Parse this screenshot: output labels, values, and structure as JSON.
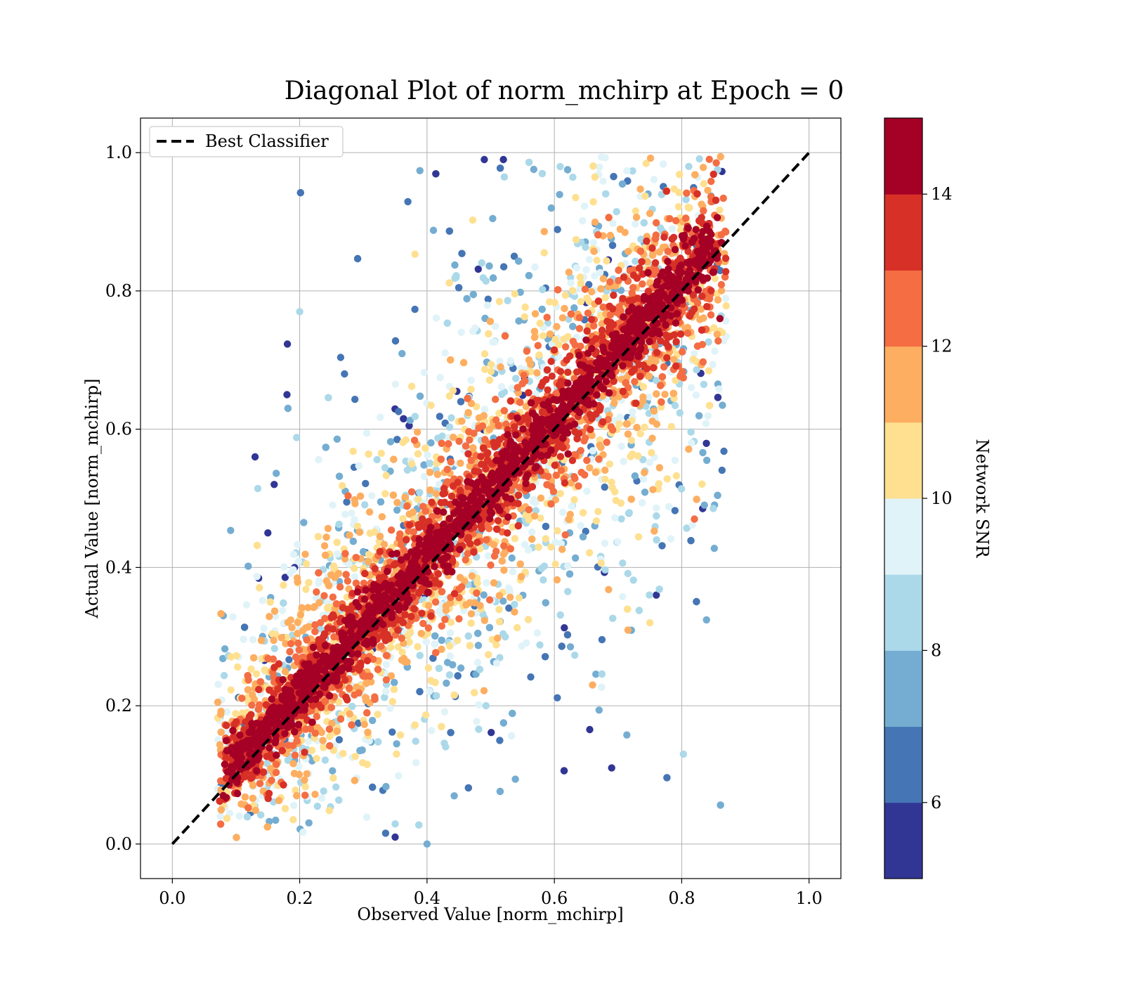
{
  "chart_data": {
    "type": "scatter",
    "title": "Diagonal Plot of norm_mchirp at Epoch = 0",
    "xlabel": "Observed Value [norm_mchirp]",
    "ylabel": "Actual Value [norm_mchirp]",
    "xlim": [
      -0.05,
      1.05
    ],
    "ylim": [
      -0.05,
      1.05
    ],
    "xticks": [
      0.0,
      0.2,
      0.4,
      0.6,
      0.8,
      1.0
    ],
    "yticks": [
      0.0,
      0.2,
      0.4,
      0.6,
      0.8,
      1.0
    ],
    "xtick_labels": [
      "0.0",
      "0.2",
      "0.4",
      "0.6",
      "0.8",
      "1.0"
    ],
    "ytick_labels": [
      "0.0",
      "0.2",
      "0.4",
      "0.6",
      "0.8",
      "1.0"
    ],
    "grid": true,
    "legend": {
      "placement": "top-left",
      "entries": [
        "Best Classifier"
      ]
    },
    "reference_line": {
      "name": "Best Classifier",
      "x": [
        0.0,
        1.0
      ],
      "y": [
        0.0,
        1.0
      ],
      "style": "dashed",
      "color": "#000000"
    },
    "colorbar": {
      "label": "Network SNR",
      "range": [
        5,
        15
      ],
      "ticks": [
        6,
        8,
        10,
        12,
        14
      ],
      "tick_labels": [
        "6",
        "8",
        "10",
        "12",
        "14"
      ],
      "colors": [
        "#313695",
        "#4575b4",
        "#74add1",
        "#abd9e9",
        "#e0f3f8",
        "#fee090",
        "#fdae61",
        "#f46d43",
        "#d73027",
        "#a50026"
      ]
    },
    "point_cloud": {
      "description_of_distribution": "dense band along diagonal",
      "x_range": [
        0.07,
        0.87
      ],
      "y_range": [
        0.0,
        1.0
      ],
      "snr_range": [
        5,
        15
      ],
      "points": [
        {
          "x": 0.13,
          "y": 0.56,
          "snr": 5.5
        },
        {
          "x": 0.16,
          "y": 0.52,
          "snr": 5.5
        },
        {
          "x": 0.18,
          "y": 0.65,
          "snr": 5.5
        },
        {
          "x": 0.2,
          "y": 0.77,
          "snr": 8.5
        },
        {
          "x": 0.15,
          "y": 0.45,
          "snr": 5.5
        },
        {
          "x": 0.52,
          "y": 0.99,
          "snr": 5.5
        },
        {
          "x": 0.49,
          "y": 0.99,
          "snr": 5.5
        },
        {
          "x": 0.86,
          "y": 0.76,
          "snr": 14.5
        },
        {
          "x": 0.35,
          "y": 0.01,
          "snr": 5.5
        },
        {
          "x": 0.4,
          "y": 0.0,
          "snr": 7.5
        },
        {
          "x": 0.69,
          "y": 0.11,
          "snr": 5.5
        },
        {
          "x": 0.75,
          "y": 0.32,
          "snr": 10.5
        },
        {
          "x": 0.66,
          "y": 0.23,
          "snr": 11.5
        },
        {
          "x": 0.08,
          "y": 0.07,
          "snr": 14.5
        },
        {
          "x": 0.82,
          "y": 0.47,
          "snr": 12.5
        },
        {
          "x": 0.76,
          "y": 0.36,
          "snr": 5.5
        }
      ]
    }
  }
}
